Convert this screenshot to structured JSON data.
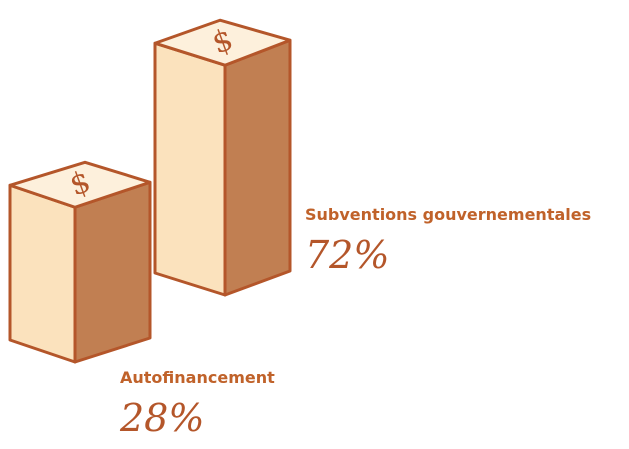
{
  "chart_data": {
    "type": "bar",
    "categories": [
      "Autofinancement",
      "Subventions gouvernementales"
    ],
    "values": [
      28,
      72
    ],
    "value_labels": [
      "28%",
      "72%"
    ],
    "color": "#c17f52"
  }
}
